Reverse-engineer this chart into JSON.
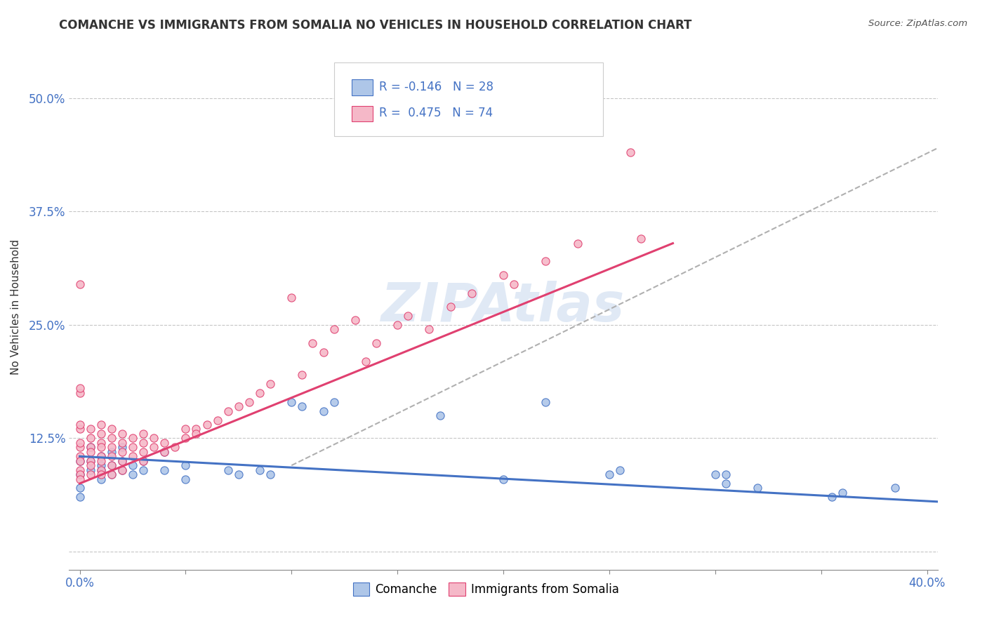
{
  "title": "COMANCHE VS IMMIGRANTS FROM SOMALIA NO VEHICLES IN HOUSEHOLD CORRELATION CHART",
  "source": "Source: ZipAtlas.com",
  "ylabel": "No Vehicles in Household",
  "watermark": "ZIPAtlas",
  "xlim": [
    -0.005,
    0.405
  ],
  "ylim": [
    -0.02,
    0.56
  ],
  "xtick_vals": [
    0.0,
    0.05,
    0.1,
    0.15,
    0.2,
    0.25,
    0.3,
    0.35,
    0.4
  ],
  "ytick_vals": [
    0.0,
    0.125,
    0.25,
    0.375,
    0.5
  ],
  "comanche_color": "#aec6e8",
  "somalia_color": "#f5b8c8",
  "line_comanche_color": "#4472c4",
  "line_somalia_color": "#e04070",
  "line_trend_color": "#b0b0b0",
  "comanche_R": -0.146,
  "somalia_R": 0.475,
  "comanche_scatter": [
    [
      0.0,
      0.1
    ],
    [
      0.0,
      0.07
    ],
    [
      0.0,
      0.085
    ],
    [
      0.0,
      0.06
    ],
    [
      0.005,
      0.09
    ],
    [
      0.005,
      0.1
    ],
    [
      0.005,
      0.115
    ],
    [
      0.01,
      0.08
    ],
    [
      0.01,
      0.09
    ],
    [
      0.01,
      0.095
    ],
    [
      0.01,
      0.105
    ],
    [
      0.015,
      0.085
    ],
    [
      0.015,
      0.095
    ],
    [
      0.015,
      0.11
    ],
    [
      0.02,
      0.09
    ],
    [
      0.02,
      0.1
    ],
    [
      0.02,
      0.115
    ],
    [
      0.025,
      0.085
    ],
    [
      0.025,
      0.095
    ],
    [
      0.03,
      0.09
    ],
    [
      0.03,
      0.1
    ],
    [
      0.04,
      0.09
    ],
    [
      0.04,
      0.11
    ],
    [
      0.05,
      0.08
    ],
    [
      0.05,
      0.095
    ],
    [
      0.07,
      0.09
    ],
    [
      0.075,
      0.085
    ],
    [
      0.085,
      0.09
    ],
    [
      0.09,
      0.085
    ],
    [
      0.1,
      0.165
    ],
    [
      0.105,
      0.16
    ],
    [
      0.115,
      0.155
    ],
    [
      0.12,
      0.165
    ],
    [
      0.17,
      0.15
    ],
    [
      0.2,
      0.08
    ],
    [
      0.22,
      0.165
    ],
    [
      0.25,
      0.085
    ],
    [
      0.255,
      0.09
    ],
    [
      0.3,
      0.085
    ],
    [
      0.305,
      0.085
    ],
    [
      0.305,
      0.075
    ],
    [
      0.32,
      0.07
    ],
    [
      0.355,
      0.06
    ],
    [
      0.36,
      0.065
    ],
    [
      0.385,
      0.07
    ]
  ],
  "somalia_scatter": [
    [
      0.0,
      0.295
    ],
    [
      0.0,
      0.175
    ],
    [
      0.0,
      0.18
    ],
    [
      0.0,
      0.135
    ],
    [
      0.0,
      0.14
    ],
    [
      0.0,
      0.115
    ],
    [
      0.0,
      0.12
    ],
    [
      0.0,
      0.105
    ],
    [
      0.0,
      0.1
    ],
    [
      0.0,
      0.09
    ],
    [
      0.0,
      0.085
    ],
    [
      0.0,
      0.08
    ],
    [
      0.005,
      0.135
    ],
    [
      0.005,
      0.125
    ],
    [
      0.005,
      0.115
    ],
    [
      0.005,
      0.11
    ],
    [
      0.005,
      0.1
    ],
    [
      0.005,
      0.095
    ],
    [
      0.005,
      0.085
    ],
    [
      0.01,
      0.14
    ],
    [
      0.01,
      0.13
    ],
    [
      0.01,
      0.12
    ],
    [
      0.01,
      0.115
    ],
    [
      0.01,
      0.105
    ],
    [
      0.01,
      0.1
    ],
    [
      0.01,
      0.09
    ],
    [
      0.01,
      0.085
    ],
    [
      0.015,
      0.135
    ],
    [
      0.015,
      0.125
    ],
    [
      0.015,
      0.115
    ],
    [
      0.015,
      0.105
    ],
    [
      0.015,
      0.095
    ],
    [
      0.015,
      0.085
    ],
    [
      0.02,
      0.13
    ],
    [
      0.02,
      0.12
    ],
    [
      0.02,
      0.11
    ],
    [
      0.02,
      0.1
    ],
    [
      0.02,
      0.09
    ],
    [
      0.025,
      0.125
    ],
    [
      0.025,
      0.115
    ],
    [
      0.025,
      0.105
    ],
    [
      0.03,
      0.13
    ],
    [
      0.03,
      0.12
    ],
    [
      0.03,
      0.11
    ],
    [
      0.03,
      0.1
    ],
    [
      0.035,
      0.125
    ],
    [
      0.035,
      0.115
    ],
    [
      0.04,
      0.12
    ],
    [
      0.04,
      0.11
    ],
    [
      0.045,
      0.115
    ],
    [
      0.05,
      0.135
    ],
    [
      0.05,
      0.125
    ],
    [
      0.055,
      0.135
    ],
    [
      0.055,
      0.13
    ],
    [
      0.06,
      0.14
    ],
    [
      0.065,
      0.145
    ],
    [
      0.07,
      0.155
    ],
    [
      0.075,
      0.16
    ],
    [
      0.08,
      0.165
    ],
    [
      0.085,
      0.175
    ],
    [
      0.09,
      0.185
    ],
    [
      0.1,
      0.28
    ],
    [
      0.105,
      0.195
    ],
    [
      0.11,
      0.23
    ],
    [
      0.115,
      0.22
    ],
    [
      0.12,
      0.245
    ],
    [
      0.13,
      0.255
    ],
    [
      0.135,
      0.21
    ],
    [
      0.14,
      0.23
    ],
    [
      0.15,
      0.25
    ],
    [
      0.155,
      0.26
    ],
    [
      0.165,
      0.245
    ],
    [
      0.175,
      0.27
    ],
    [
      0.185,
      0.285
    ],
    [
      0.2,
      0.305
    ],
    [
      0.205,
      0.295
    ],
    [
      0.22,
      0.32
    ],
    [
      0.235,
      0.34
    ],
    [
      0.26,
      0.44
    ],
    [
      0.265,
      0.345
    ]
  ],
  "comanche_line": {
    "x0": 0.0,
    "y0": 0.105,
    "x1": 0.405,
    "y1": 0.055
  },
  "somalia_line": {
    "x0": 0.0,
    "y0": 0.075,
    "x1": 0.28,
    "y1": 0.34
  },
  "trend_line": {
    "x0": 0.1,
    "y0": 0.095,
    "x1": 0.405,
    "y1": 0.445
  }
}
